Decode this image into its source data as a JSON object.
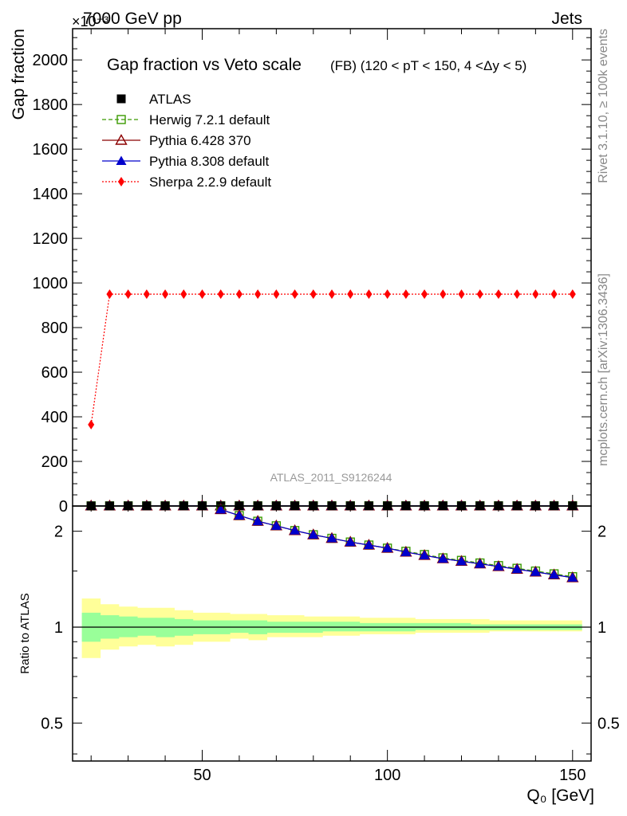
{
  "header": {
    "left": "7000 GeV pp",
    "right": "Jets",
    "multiplier": "×10⁻³",
    "ref_label": "ATLAS_2011_S9126244",
    "side_top": "Rivet 3.1.10, ≥ 100k events",
    "side_bottom": "mcplots.cern.ch [arXiv:1306.3436]"
  },
  "colors": {
    "atlas": "#000000",
    "herwig": "#3a9a00",
    "pythia6": "#8b0000",
    "pythia8": "#0000cc",
    "sherpa": "#ff0000",
    "band_inner": "#99ff99",
    "band_outer": "#ffff99",
    "ref_label": "#999999",
    "side_text": "#888888"
  },
  "chart_data": [
    {
      "type": "line",
      "title": "Gap fraction vs Veto scale",
      "subtitle": "(FB) (120 < pT < 150, 4 <Δy < 5)",
      "ylabel": "Gap fraction",
      "xlim": [
        15,
        155
      ],
      "ylim": [
        0,
        2140
      ],
      "yticks": [
        0,
        200,
        400,
        600,
        800,
        1000,
        1200,
        1400,
        1600,
        1800,
        2000
      ],
      "ytick_labels": [
        "0",
        "200",
        "400",
        "600",
        "800",
        "1000",
        "1200",
        "1400",
        "1600",
        "1800",
        "2000"
      ],
      "x": [
        20,
        25,
        30,
        35,
        40,
        45,
        50,
        55,
        60,
        65,
        70,
        75,
        80,
        85,
        90,
        95,
        100,
        105,
        110,
        115,
        120,
        125,
        130,
        135,
        140,
        145,
        150
      ],
      "legend": [
        {
          "name": "ATLAS",
          "key": "atlas"
        },
        {
          "name": "Herwig 7.2.1 default",
          "key": "herwig"
        },
        {
          "name": "Pythia 6.428 370",
          "key": "pythia6"
        },
        {
          "name": "Pythia 8.308 default",
          "key": "pythia8"
        },
        {
          "name": "Sherpa 2.2.9 default",
          "key": "sherpa"
        }
      ],
      "series": [
        {
          "name": "ATLAS",
          "key": "atlas",
          "values": [
            0.52,
            0.58,
            0.62,
            0.66,
            0.69,
            0.71,
            0.73,
            0.75,
            0.76,
            0.78,
            0.79,
            0.8,
            0.81,
            0.82,
            0.83,
            0.84,
            0.85,
            0.85,
            0.86,
            0.87,
            0.87,
            0.88,
            0.88,
            0.89,
            0.89,
            0.9,
            0.9
          ]
        },
        {
          "name": "Herwig 7.2.1 default",
          "key": "herwig",
          "values": [
            0.55,
            0.62,
            0.67,
            0.7,
            0.73,
            0.75,
            0.77,
            0.79,
            0.8,
            0.82,
            0.83,
            0.84,
            0.85,
            0.86,
            0.86,
            0.87,
            0.88,
            0.88,
            0.89,
            0.89,
            0.9,
            0.9,
            0.9,
            0.91,
            0.91,
            0.91,
            0.92
          ]
        },
        {
          "name": "Pythia 6.428 370",
          "key": "pythia6",
          "values": [
            0.56,
            0.63,
            0.67,
            0.71,
            0.74,
            0.76,
            0.78,
            0.79,
            0.81,
            0.82,
            0.83,
            0.84,
            0.85,
            0.86,
            0.87,
            0.87,
            0.88,
            0.88,
            0.89,
            0.89,
            0.9,
            0.9,
            0.9,
            0.91,
            0.91,
            0.91,
            0.92
          ]
        },
        {
          "name": "Pythia 8.308 default",
          "key": "pythia8",
          "values": [
            0.56,
            0.63,
            0.67,
            0.71,
            0.74,
            0.76,
            0.78,
            0.79,
            0.81,
            0.82,
            0.83,
            0.84,
            0.85,
            0.86,
            0.87,
            0.87,
            0.88,
            0.88,
            0.89,
            0.89,
            0.9,
            0.9,
            0.9,
            0.91,
            0.91,
            0.91,
            0.92
          ]
        },
        {
          "name": "Sherpa 2.2.9 default",
          "key": "sherpa",
          "values": [
            365,
            950,
            950,
            950,
            950,
            950,
            950,
            950,
            950,
            950,
            950,
            950,
            950,
            950,
            950,
            950,
            950,
            950,
            950,
            950,
            950,
            950,
            950,
            950,
            950,
            950,
            950
          ]
        }
      ]
    },
    {
      "type": "line",
      "ylabel": "Ratio to ATLAS",
      "xlabel": "Q₀ [GeV]",
      "yscale": "log",
      "xlim": [
        15,
        155
      ],
      "ylim": [
        0.38,
        2.4
      ],
      "xticks": [
        50,
        100,
        150
      ],
      "xtick_labels": [
        "50",
        "100",
        "150"
      ],
      "yticks": [
        0.5,
        1,
        2
      ],
      "ytick_labels": [
        "0.5",
        "1",
        "2"
      ],
      "x_edges": [
        17.5,
        22.5,
        27.5,
        32.5,
        37.5,
        42.5,
        47.5,
        52.5,
        57.5,
        62.5,
        67.5,
        72.5,
        77.5,
        82.5,
        87.5,
        92.5,
        97.5,
        102.5,
        107.5,
        112.5,
        117.5,
        122.5,
        127.5,
        132.5,
        137.5,
        142.5,
        147.5,
        152.5
      ],
      "band_inner": {
        "lo": [
          0.9,
          0.92,
          0.93,
          0.94,
          0.93,
          0.94,
          0.95,
          0.95,
          0.96,
          0.95,
          0.96,
          0.96,
          0.96,
          0.97,
          0.97,
          0.97,
          0.97,
          0.97,
          0.98,
          0.98,
          0.98,
          0.98,
          0.98,
          0.98,
          0.98,
          0.98,
          0.98
        ],
        "hi": [
          1.11,
          1.09,
          1.08,
          1.07,
          1.07,
          1.06,
          1.05,
          1.05,
          1.05,
          1.05,
          1.04,
          1.04,
          1.04,
          1.04,
          1.04,
          1.03,
          1.03,
          1.03,
          1.03,
          1.03,
          1.03,
          1.02,
          1.02,
          1.02,
          1.02,
          1.02,
          1.02
        ]
      },
      "band_outer": {
        "lo": [
          0.8,
          0.85,
          0.87,
          0.88,
          0.87,
          0.88,
          0.9,
          0.9,
          0.92,
          0.91,
          0.93,
          0.93,
          0.93,
          0.94,
          0.94,
          0.95,
          0.95,
          0.95,
          0.96,
          0.96,
          0.96,
          0.96,
          0.97,
          0.97,
          0.97,
          0.97,
          0.97
        ],
        "hi": [
          1.23,
          1.18,
          1.16,
          1.15,
          1.15,
          1.13,
          1.11,
          1.11,
          1.1,
          1.1,
          1.09,
          1.09,
          1.08,
          1.08,
          1.08,
          1.07,
          1.07,
          1.07,
          1.06,
          1.06,
          1.06,
          1.06,
          1.05,
          1.05,
          1.05,
          1.05,
          1.05
        ]
      },
      "ratio_x": [
        55,
        60,
        65,
        70,
        75,
        80,
        85,
        90,
        95,
        100,
        105,
        110,
        115,
        120,
        125,
        130,
        135,
        140,
        145,
        150
      ],
      "ratio_series": [
        {
          "name": "Herwig 7.2.1 default",
          "key": "herwig",
          "values": [
            2.34,
            2.24,
            2.15,
            2.08,
            2.01,
            1.95,
            1.9,
            1.85,
            1.81,
            1.77,
            1.73,
            1.69,
            1.65,
            1.62,
            1.59,
            1.56,
            1.53,
            1.5,
            1.47,
            1.44
          ]
        },
        {
          "name": "Pythia 6.428 370",
          "key": "pythia6",
          "values": [
            2.34,
            2.24,
            2.15,
            2.08,
            2.01,
            1.95,
            1.9,
            1.85,
            1.81,
            1.77,
            1.72,
            1.68,
            1.64,
            1.61,
            1.58,
            1.55,
            1.52,
            1.49,
            1.46,
            1.43
          ]
        },
        {
          "name": "Pythia 8.308 default",
          "key": "pythia8",
          "values": [
            2.34,
            2.24,
            2.15,
            2.08,
            2.01,
            1.95,
            1.9,
            1.85,
            1.81,
            1.77,
            1.72,
            1.68,
            1.64,
            1.61,
            1.58,
            1.55,
            1.52,
            1.49,
            1.46,
            1.43
          ]
        }
      ]
    }
  ]
}
